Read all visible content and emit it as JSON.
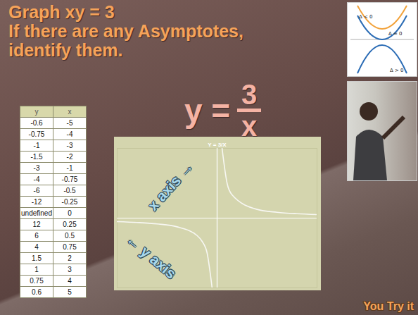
{
  "slide": {
    "title": [
      "Graph xy = 3",
      "If there are any Asymptotes,",
      "identify them."
    ],
    "formula": {
      "lhs": "y =",
      "numerator": "3",
      "denominator": "x"
    },
    "table": {
      "header": [
        "y",
        "x"
      ],
      "rows": [
        [
          "-0.6",
          "-5"
        ],
        [
          "-0.75",
          "-4"
        ],
        [
          "-1",
          "-3"
        ],
        [
          "-1.5",
          "-2"
        ],
        [
          "-3",
          "-1"
        ],
        [
          "-4",
          "-0.75"
        ],
        [
          "-6",
          "-0.5"
        ],
        [
          "-12",
          "-0.25"
        ],
        [
          "undefined",
          "0"
        ],
        [
          "12",
          "0.25"
        ],
        [
          "6",
          "0.5"
        ],
        [
          "4",
          "0.75"
        ],
        [
          "1.5",
          "2"
        ],
        [
          "1",
          "3"
        ],
        [
          "0.75",
          "4"
        ],
        [
          "0.6",
          "5"
        ]
      ]
    },
    "image_labels": [
      "Δ < 0",
      "Δ = 0",
      "Δ > 0"
    ],
    "footer": "You Try it"
  },
  "chart_data": {
    "type": "line",
    "title": "Y = 3/X",
    "x": [
      -5,
      -4,
      -3,
      -2,
      -1,
      -0.75,
      -0.5,
      -0.25,
      0,
      0.25,
      0.5,
      0.75,
      2,
      3,
      4,
      5
    ],
    "values": [
      -0.6,
      -0.75,
      -1,
      -1.5,
      -3,
      -4,
      -6,
      -12,
      null,
      12,
      6,
      4,
      1.5,
      1,
      0.75,
      0.6
    ],
    "color": "#f7f7f2",
    "xlim": [
      -5,
      5
    ],
    "ylim": [
      -12,
      12
    ],
    "tick_labels": false,
    "annotations": [
      "x axis →",
      "← y axis"
    ]
  }
}
